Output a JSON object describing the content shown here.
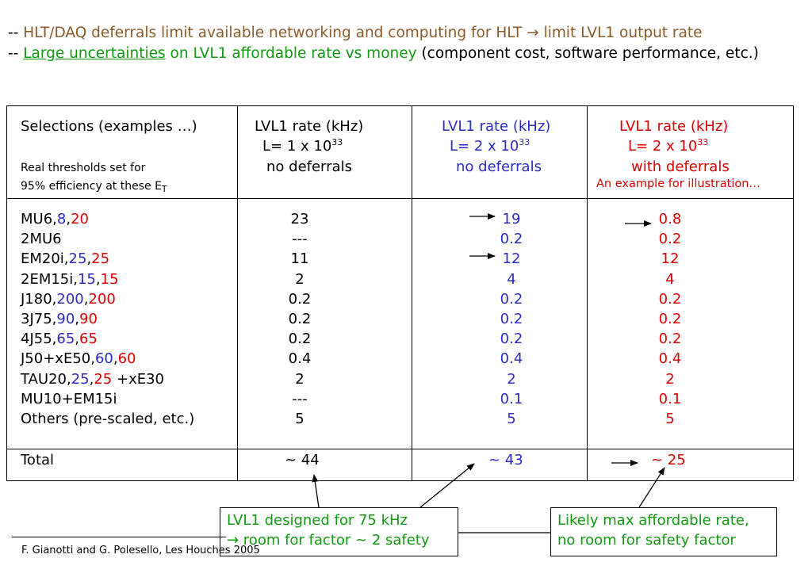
{
  "intro": {
    "line1_prefix": "-- ",
    "line1_text": "HLT/DAQ deferrals limit available networking and computing for HLT → limit LVL1 output rate",
    "line2_prefix": "-- ",
    "line2_underlined": "Large uncertainties",
    "line2_green": " on LVL1 affordable rate vs money ",
    "line2_black": "(component cost, software performance, etc.)"
  },
  "table": {
    "col1": {
      "title": "Selections (examples …)",
      "note1": "Real thresholds set for",
      "note2": "95% efficiency at these E",
      "note2_sub": "T"
    },
    "col2": {
      "title": "LVL1 rate (kHz)",
      "lumi": "L= 1 x 10",
      "lumi_exp": "33",
      "sub": "no deferrals"
    },
    "col3": {
      "title": "LVL1 rate (kHz)",
      "lumi": "L= 2 x 10",
      "lumi_exp": "33",
      "sub": "no deferrals"
    },
    "col4": {
      "title": "LVL1 rate (kHz)",
      "lumi": "L= 2 x 10",
      "lumi_exp": "33",
      "sub": "with deferrals",
      "note": "An example for illustration…"
    },
    "rows": [
      {
        "name_black": "MU6,",
        "name_blue": "8",
        "name_sep": ",",
        "name_red": "20",
        "name_tail": "",
        "v1": "23",
        "v2": "19",
        "v3": "0.8"
      },
      {
        "name_black": "2MU6",
        "name_blue": "",
        "name_sep": "",
        "name_red": "",
        "name_tail": "",
        "v1": "---",
        "v2": "0.2",
        "v3": "0.2"
      },
      {
        "name_black": "EM20i,",
        "name_blue": "25",
        "name_sep": ",",
        "name_red": "25",
        "name_tail": "",
        "v1": "11",
        "v2": "12",
        "v3": "12"
      },
      {
        "name_black": "2EM15i,",
        "name_blue": "15",
        "name_sep": ",",
        "name_red": "15",
        "name_tail": "",
        "v1": "2",
        "v2": "4",
        "v3": "4"
      },
      {
        "name_black": "J180,",
        "name_blue": "200",
        "name_sep": ",",
        "name_red": "200",
        "name_tail": "",
        "v1": "0.2",
        "v2": "0.2",
        "v3": "0.2"
      },
      {
        "name_black": "3J75,",
        "name_blue": "90",
        "name_sep": ",",
        "name_red": "90",
        "name_tail": "",
        "v1": "0.2",
        "v2": "0.2",
        "v3": "0.2"
      },
      {
        "name_black": "4J55,",
        "name_blue": "65",
        "name_sep": ",",
        "name_red": "65",
        "name_tail": "",
        "v1": "0.2",
        "v2": "0.2",
        "v3": "0.2"
      },
      {
        "name_black": "J50+xE50,",
        "name_blue": "60",
        "name_sep": ",",
        "name_red": "60",
        "name_tail": "",
        "v1": "0.4",
        "v2": "0.4",
        "v3": "0.4"
      },
      {
        "name_black": "TAU20,",
        "name_blue": "25",
        "name_sep": ",",
        "name_red": "25",
        "name_tail": " +xE30",
        "v1": "2",
        "v2": "2",
        "v3": "2"
      },
      {
        "name_black": "MU10+EM15i",
        "name_blue": "",
        "name_sep": "",
        "name_red": "",
        "name_tail": "",
        "v1": "---",
        "v2": "0.1",
        "v3": "0.1"
      },
      {
        "name_black": "Others (pre-scaled, etc.)",
        "name_blue": "",
        "name_sep": "",
        "name_red": "",
        "name_tail": "",
        "v1": "5",
        "v2": "5",
        "v3": "5"
      }
    ],
    "total": {
      "label": "Total",
      "v1": "~ 44",
      "v2": "~ 43",
      "v3": "~ 25"
    }
  },
  "callouts": {
    "left_line1": "LVL1 designed for 75 kHz",
    "left_line2": "→ room for factor ~ 2 safety",
    "right_line1": "Likely max affordable rate,",
    "right_line2": "no room for safety factor"
  },
  "footer": "F. Gianotti and G. Polesello,  Les Houches 2005",
  "colors": {
    "brown": "#8B5A2B",
    "green": "#119911",
    "blue": "#2B2BC8",
    "red": "#E00000"
  }
}
